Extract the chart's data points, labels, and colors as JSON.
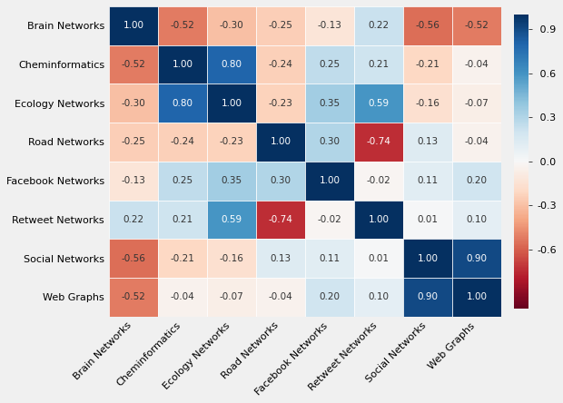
{
  "labels": [
    "Brain Networks",
    "Cheminformatics",
    "Ecology Networks",
    "Road Networks",
    "Facebook Networks",
    "Retweet Networks",
    "Social Networks",
    "Web Graphs"
  ],
  "matrix": [
    [
      1.0,
      -0.52,
      -0.3,
      -0.25,
      -0.13,
      0.22,
      -0.56,
      -0.52
    ],
    [
      -0.52,
      1.0,
      0.8,
      -0.24,
      0.25,
      0.21,
      -0.21,
      -0.04
    ],
    [
      -0.3,
      0.8,
      1.0,
      -0.23,
      0.35,
      0.59,
      -0.16,
      -0.07
    ],
    [
      -0.25,
      -0.24,
      -0.23,
      1.0,
      0.3,
      -0.74,
      0.13,
      -0.04
    ],
    [
      -0.13,
      0.25,
      0.35,
      0.3,
      1.0,
      -0.02,
      0.11,
      0.2
    ],
    [
      0.22,
      0.21,
      0.59,
      -0.74,
      -0.02,
      1.0,
      0.01,
      0.1
    ],
    [
      -0.56,
      -0.21,
      -0.16,
      0.13,
      0.11,
      0.01,
      1.0,
      0.9
    ],
    [
      -0.52,
      -0.04,
      -0.07,
      -0.04,
      0.2,
      0.1,
      0.9,
      1.0
    ]
  ],
  "vmin": -1.0,
  "vmax": 1.0,
  "cmap": "RdBu",
  "colorbar_ticks": [
    0.9,
    0.6,
    0.3,
    0.0,
    -0.3,
    -0.6
  ],
  "colorbar_ticklabels": [
    " 0.9",
    " 0.6",
    " 0.3",
    " 0.0",
    "-0.3",
    "-0.6"
  ],
  "figsize": [
    6.2,
    4.44
  ],
  "dpi": 100,
  "bg_color": "#f0f0f0",
  "cell_bg": "#f0f0f0",
  "y_label_fontsize": 8,
  "x_label_fontsize": 8,
  "annot_fontsize": 7.5,
  "cbar_fontsize": 8,
  "linewidth": 0.5
}
